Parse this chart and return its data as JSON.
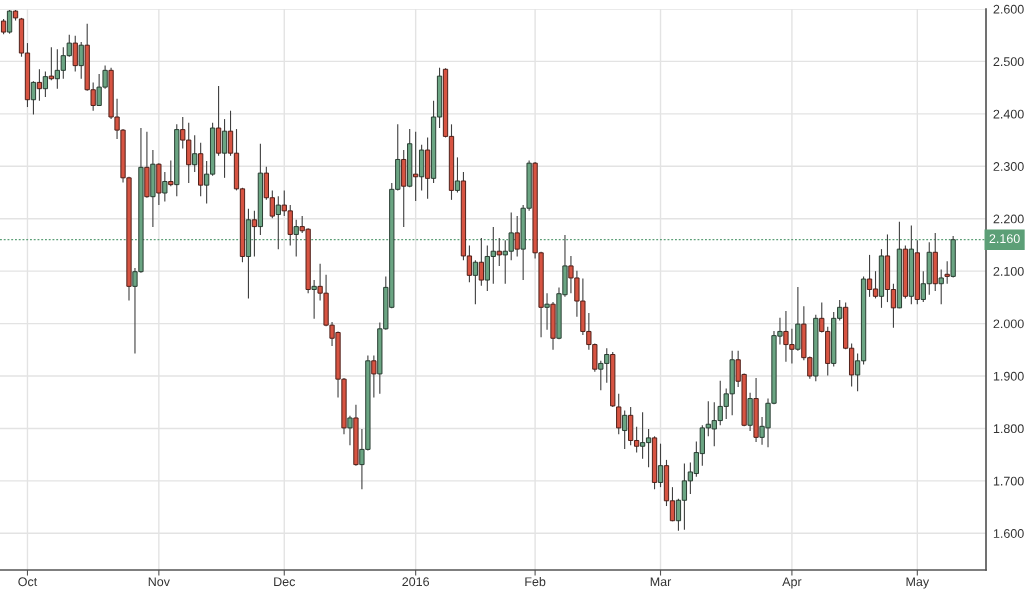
{
  "chart_data": {
    "type": "candlestick",
    "categories": [
      null,
      null,
      null,
      null,
      "Oct",
      null,
      null,
      null,
      null,
      null,
      null,
      null,
      null,
      null,
      null,
      null,
      null,
      null,
      null,
      null,
      null,
      null,
      null,
      null,
      null,
      null,
      "Nov",
      null,
      null,
      null,
      null,
      null,
      null,
      null,
      null,
      null,
      null,
      null,
      null,
      null,
      null,
      null,
      null,
      null,
      null,
      null,
      null,
      "Dec",
      null,
      null,
      null,
      null,
      null,
      null,
      null,
      null,
      null,
      null,
      null,
      null,
      null,
      null,
      null,
      null,
      null,
      null,
      null,
      null,
      null,
      "2016",
      null,
      null,
      null,
      null,
      null,
      null,
      null,
      null,
      null,
      null,
      null,
      null,
      null,
      null,
      null,
      null,
      null,
      null,
      null,
      "Feb",
      null,
      null,
      null,
      null,
      null,
      null,
      null,
      null,
      null,
      null,
      null,
      null,
      null,
      null,
      null,
      null,
      null,
      null,
      null,
      null,
      "Mar",
      null,
      null,
      null,
      null,
      null,
      null,
      null,
      null,
      null,
      null,
      null,
      null,
      null,
      null,
      null,
      null,
      null,
      null,
      null,
      null,
      null,
      "Apr",
      null,
      null,
      null,
      null,
      null,
      null,
      null,
      null,
      null,
      null,
      null,
      null,
      null,
      null,
      null,
      null,
      null,
      null,
      null,
      null,
      "May",
      null,
      null,
      null,
      null,
      null,
      null
    ],
    "ohlc": [
      [
        2.577,
        2.581,
        2.552,
        2.556
      ],
      [
        2.556,
        2.598,
        2.553,
        2.596
      ],
      [
        2.596,
        2.598,
        2.578,
        2.583
      ],
      [
        2.581,
        2.583,
        2.509,
        2.516
      ],
      [
        2.516,
        2.535,
        2.413,
        2.427
      ],
      [
        2.427,
        2.462,
        2.399,
        2.46
      ],
      [
        2.46,
        2.485,
        2.425,
        2.448
      ],
      [
        2.448,
        2.481,
        2.432,
        2.471
      ],
      [
        2.472,
        2.527,
        2.464,
        2.467
      ],
      [
        2.467,
        2.523,
        2.448,
        2.483
      ],
      [
        2.483,
        2.527,
        2.467,
        2.511
      ],
      [
        2.511,
        2.551,
        2.509,
        2.535
      ],
      [
        2.535,
        2.549,
        2.481,
        2.492
      ],
      [
        2.492,
        2.537,
        2.467,
        2.531
      ],
      [
        2.531,
        2.572,
        2.444,
        2.446
      ],
      [
        2.446,
        2.46,
        2.406,
        2.416
      ],
      [
        2.416,
        2.476,
        2.415,
        2.451
      ],
      [
        2.451,
        2.492,
        2.448,
        2.483
      ],
      [
        2.483,
        2.488,
        2.39,
        2.394
      ],
      [
        2.394,
        2.429,
        2.352,
        2.369
      ],
      [
        2.369,
        2.371,
        2.269,
        2.278
      ],
      [
        2.278,
        2.28,
        2.044,
        2.071
      ],
      [
        2.071,
        2.106,
        1.943,
        2.099
      ],
      [
        2.099,
        2.373,
        2.097,
        2.298
      ],
      [
        2.298,
        2.366,
        2.24,
        2.242
      ],
      [
        2.242,
        2.331,
        2.184,
        2.304
      ],
      [
        2.304,
        2.306,
        2.226,
        2.249
      ],
      [
        2.249,
        2.289,
        2.233,
        2.271
      ],
      [
        2.271,
        2.311,
        2.262,
        2.265
      ],
      [
        2.265,
        2.38,
        2.243,
        2.37
      ],
      [
        2.37,
        2.394,
        2.334,
        2.35
      ],
      [
        2.35,
        2.383,
        2.268,
        2.303
      ],
      [
        2.303,
        2.359,
        2.289,
        2.324
      ],
      [
        2.324,
        2.345,
        2.243,
        2.264
      ],
      [
        2.264,
        2.31,
        2.229,
        2.285
      ],
      [
        2.285,
        2.383,
        2.282,
        2.373
      ],
      [
        2.373,
        2.453,
        2.32,
        2.325
      ],
      [
        2.325,
        2.39,
        2.278,
        2.367
      ],
      [
        2.367,
        2.406,
        2.32,
        2.325
      ],
      [
        2.325,
        2.371,
        2.254,
        2.257
      ],
      [
        2.257,
        2.259,
        2.117,
        2.128
      ],
      [
        2.128,
        2.219,
        2.048,
        2.198
      ],
      [
        2.198,
        2.215,
        2.128,
        2.185
      ],
      [
        2.185,
        2.343,
        2.169,
        2.287
      ],
      [
        2.287,
        2.299,
        2.236,
        2.24
      ],
      [
        2.24,
        2.254,
        2.201,
        2.205
      ],
      [
        2.208,
        2.243,
        2.142,
        2.226
      ],
      [
        2.226,
        2.254,
        2.205,
        2.215
      ],
      [
        2.215,
        2.226,
        2.149,
        2.17
      ],
      [
        2.17,
        2.198,
        2.128,
        2.185
      ],
      [
        2.185,
        2.205,
        2.173,
        2.177
      ],
      [
        2.18,
        2.182,
        2.058,
        2.065
      ],
      [
        2.065,
        2.083,
        2.009,
        2.071
      ],
      [
        2.071,
        2.114,
        2.044,
        2.058
      ],
      [
        2.058,
        2.093,
        1.995,
        1.997
      ],
      [
        1.997,
        2.003,
        1.957,
        1.972
      ],
      [
        1.983,
        1.985,
        1.859,
        1.894
      ],
      [
        1.894,
        1.896,
        1.789,
        1.801
      ],
      [
        1.801,
        1.824,
        1.768,
        1.82
      ],
      [
        1.82,
        1.845,
        1.729,
        1.731
      ],
      [
        1.731,
        1.799,
        1.684,
        1.76
      ],
      [
        1.76,
        1.939,
        1.758,
        1.929
      ],
      [
        1.929,
        1.939,
        1.859,
        1.904
      ],
      [
        1.904,
        2.002,
        1.866,
        1.99
      ],
      [
        1.99,
        2.09,
        1.988,
        2.069
      ],
      [
        2.031,
        2.268,
        2.029,
        2.256
      ],
      [
        2.256,
        2.38,
        2.254,
        2.313
      ],
      [
        2.313,
        2.331,
        2.184,
        2.262
      ],
      [
        2.262,
        2.371,
        2.26,
        2.343
      ],
      [
        2.285,
        2.366,
        2.234,
        2.28
      ],
      [
        2.28,
        2.341,
        2.254,
        2.331
      ],
      [
        2.331,
        2.355,
        2.238,
        2.277
      ],
      [
        2.277,
        2.425,
        2.268,
        2.394
      ],
      [
        2.394,
        2.488,
        2.373,
        2.472
      ],
      [
        2.485,
        2.487,
        2.355,
        2.357
      ],
      [
        2.357,
        2.38,
        2.236,
        2.254
      ],
      [
        2.254,
        2.317,
        2.25,
        2.272
      ],
      [
        2.272,
        2.289,
        2.121,
        2.129
      ],
      [
        2.129,
        2.149,
        2.079,
        2.092
      ],
      [
        2.092,
        2.121,
        2.037,
        2.117
      ],
      [
        2.117,
        2.163,
        2.072,
        2.083
      ],
      [
        2.083,
        2.149,
        2.062,
        2.128
      ],
      [
        2.128,
        2.184,
        2.076,
        2.138
      ],
      [
        2.138,
        2.163,
        2.11,
        2.131
      ],
      [
        2.131,
        2.159,
        2.076,
        2.138
      ],
      [
        2.138,
        2.212,
        2.121,
        2.173
      ],
      [
        2.173,
        2.205,
        2.128,
        2.142
      ],
      [
        2.142,
        2.226,
        2.083,
        2.22
      ],
      [
        2.22,
        2.311,
        2.215,
        2.306
      ],
      [
        2.306,
        2.308,
        2.124,
        2.135
      ],
      [
        2.135,
        2.137,
        1.974,
        2.031
      ],
      [
        2.031,
        2.058,
        1.988,
        2.037
      ],
      [
        2.037,
        2.041,
        1.95,
        1.972
      ],
      [
        1.972,
        2.069,
        1.97,
        2.057
      ],
      [
        2.055,
        2.169,
        2.051,
        2.11
      ],
      [
        2.11,
        2.129,
        2.058,
        2.087
      ],
      [
        2.087,
        2.101,
        2.013,
        2.043
      ],
      [
        2.043,
        2.086,
        1.978,
        1.985
      ],
      [
        1.985,
        2.02,
        1.95,
        1.96
      ],
      [
        1.96,
        1.962,
        1.908,
        1.913
      ],
      [
        1.913,
        1.929,
        1.873,
        1.924
      ],
      [
        1.924,
        1.953,
        1.887,
        1.941
      ],
      [
        1.941,
        1.946,
        1.841,
        1.843
      ],
      [
        1.841,
        1.866,
        1.789,
        1.801
      ],
      [
        1.796,
        1.834,
        1.761,
        1.825
      ],
      [
        1.825,
        1.841,
        1.768,
        1.777
      ],
      [
        1.777,
        1.803,
        1.754,
        1.766
      ],
      [
        1.766,
        1.831,
        1.742,
        1.773
      ],
      [
        1.773,
        1.799,
        1.726,
        1.782
      ],
      [
        1.782,
        1.785,
        1.684,
        1.697
      ],
      [
        1.697,
        1.771,
        1.688,
        1.729
      ],
      [
        1.729,
        1.74,
        1.652,
        1.662
      ],
      [
        1.662,
        1.688,
        1.623,
        1.624
      ],
      [
        1.624,
        1.666,
        1.605,
        1.663
      ],
      [
        1.663,
        1.733,
        1.607,
        1.7
      ],
      [
        1.7,
        1.735,
        1.675,
        1.717
      ],
      [
        1.714,
        1.775,
        1.708,
        1.754
      ],
      [
        1.752,
        1.806,
        1.729,
        1.801
      ],
      [
        1.801,
        1.852,
        1.785,
        1.808
      ],
      [
        1.799,
        1.85,
        1.766,
        1.815
      ],
      [
        1.815,
        1.891,
        1.806,
        1.842
      ],
      [
        1.842,
        1.876,
        1.818,
        1.866
      ],
      [
        1.866,
        1.948,
        1.825,
        1.931
      ],
      [
        1.931,
        1.948,
        1.879,
        1.89
      ],
      [
        1.903,
        1.905,
        1.804,
        1.806
      ],
      [
        1.806,
        1.868,
        1.795,
        1.857
      ],
      [
        1.857,
        1.896,
        1.774,
        1.783
      ],
      [
        1.783,
        1.822,
        1.769,
        1.804
      ],
      [
        1.801,
        1.857,
        1.764,
        1.848
      ],
      [
        1.848,
        1.986,
        1.846,
        1.977
      ],
      [
        1.976,
        2.011,
        1.96,
        1.985
      ],
      [
        1.985,
        2.024,
        1.927,
        1.96
      ],
      [
        1.96,
        1.99,
        1.924,
        1.951
      ],
      [
        1.951,
        2.07,
        1.948,
        1.999
      ],
      [
        1.999,
        2.033,
        1.93,
        1.935
      ],
      [
        1.935,
        1.937,
        1.895,
        1.9
      ],
      [
        1.9,
        2.017,
        1.89,
        2.01
      ],
      [
        2.01,
        2.04,
        1.983,
        1.985
      ],
      [
        1.985,
        1.994,
        1.901,
        1.924
      ],
      [
        1.924,
        2.022,
        1.918,
        2.01
      ],
      [
        2.01,
        2.045,
        2.006,
        2.031
      ],
      [
        2.031,
        2.04,
        1.951,
        1.953
      ],
      [
        1.953,
        1.962,
        1.88,
        1.902
      ],
      [
        1.902,
        1.943,
        1.871,
        1.929
      ],
      [
        1.929,
        2.09,
        1.922,
        2.085
      ],
      [
        2.085,
        2.131,
        2.051,
        2.065
      ],
      [
        2.066,
        2.1,
        2.048,
        2.052
      ],
      [
        2.052,
        2.142,
        2.03,
        2.129
      ],
      [
        2.129,
        2.17,
        2.041,
        2.065
      ],
      [
        2.065,
        2.076,
        1.992,
        2.03
      ],
      [
        2.03,
        2.194,
        2.029,
        2.142
      ],
      [
        2.142,
        2.149,
        2.048,
        2.052
      ],
      [
        2.052,
        2.187,
        2.037,
        2.142
      ],
      [
        2.135,
        2.159,
        2.037,
        2.046
      ],
      [
        2.046,
        2.1,
        2.041,
        2.076
      ],
      [
        2.076,
        2.155,
        2.055,
        2.136
      ],
      [
        2.136,
        2.173,
        2.062,
        2.076
      ],
      [
        2.076,
        2.103,
        2.037,
        2.087
      ],
      [
        2.094,
        2.119,
        2.076,
        2.09
      ],
      [
        2.09,
        2.167,
        2.088,
        2.16
      ]
    ],
    "colors": [
      "#d75442",
      "#6ba583",
      "#d75442",
      "#d75442",
      "#d75442",
      "#6ba583",
      "#d75442",
      "#6ba583",
      "#d75442",
      "#6ba583",
      "#6ba583",
      "#6ba583",
      "#d75442",
      "#6ba583",
      "#d75442",
      "#d75442",
      "#6ba583",
      "#6ba583",
      "#d75442",
      "#d75442",
      "#d75442",
      "#d75442",
      "#6ba583",
      "#6ba583",
      "#d75442",
      "#6ba583",
      "#d75442",
      "#6ba583",
      "#d75442",
      "#6ba583",
      "#d75442",
      "#d75442",
      "#6ba583",
      "#d75442",
      "#6ba583",
      "#6ba583",
      "#d75442",
      "#6ba583",
      "#d75442",
      "#d75442",
      "#d75442",
      "#6ba583",
      "#d75442",
      "#6ba583",
      "#d75442",
      "#d75442",
      "#6ba583",
      "#d75442",
      "#d75442",
      "#6ba583",
      "#d75442",
      "#d75442",
      "#6ba583",
      "#d75442",
      "#d75442",
      "#d75442",
      "#d75442",
      "#d75442",
      "#6ba583",
      "#d75442",
      "#6ba583",
      "#6ba583",
      "#d75442",
      "#6ba583",
      "#6ba583",
      "#6ba583",
      "#6ba583",
      "#d75442",
      "#6ba583",
      "#d75442",
      "#6ba583",
      "#d75442",
      "#6ba583",
      "#6ba583",
      "#d75442",
      "#d75442",
      "#6ba583",
      "#d75442",
      "#d75442",
      "#6ba583",
      "#d75442",
      "#6ba583",
      "#6ba583",
      "#d75442",
      "#6ba583",
      "#6ba583",
      "#d75442",
      "#6ba583",
      "#6ba583",
      "#d75442",
      "#d75442",
      "#6ba583",
      "#d75442",
      "#6ba583",
      "#6ba583",
      "#d75442",
      "#d75442",
      "#d75442",
      "#d75442",
      "#d75442",
      "#6ba583",
      "#6ba583",
      "#d75442",
      "#d75442",
      "#6ba583",
      "#d75442",
      "#d75442",
      "#6ba583",
      "#6ba583",
      "#d75442",
      "#6ba583",
      "#d75442",
      "#d75442",
      "#6ba583",
      "#6ba583",
      "#6ba583",
      "#6ba583",
      "#6ba583",
      "#6ba583",
      "#6ba583",
      "#6ba583",
      "#6ba583",
      "#6ba583",
      "#d75442",
      "#d75442",
      "#6ba583",
      "#d75442",
      "#6ba583",
      "#6ba583",
      "#6ba583",
      "#6ba583",
      "#d75442",
      "#d75442",
      "#6ba583",
      "#d75442",
      "#d75442",
      "#6ba583",
      "#d75442",
      "#d75442",
      "#6ba583",
      "#6ba583",
      "#d75442",
      "#d75442",
      "#6ba583",
      "#6ba583",
      "#d75442",
      "#d75442",
      "#6ba583",
      "#d75442",
      "#d75442",
      "#6ba583",
      "#d75442",
      "#6ba583",
      "#d75442",
      "#6ba583",
      "#6ba583",
      "#d75442",
      "#6ba583",
      "#d75442",
      "#6ba583"
    ],
    "ylim": [
      1.53,
      2.6
    ],
    "yticks": [
      {
        "value": 1.6,
        "label": "1.600"
      },
      {
        "value": 1.7,
        "label": "1.700"
      },
      {
        "value": 1.8,
        "label": "1.800"
      },
      {
        "value": 1.9,
        "label": "1.900"
      },
      {
        "value": 2.0,
        "label": "2.000"
      },
      {
        "value": 2.1,
        "label": "2.100"
      },
      {
        "value": 2.2,
        "label": "2.200"
      },
      {
        "value": 2.3,
        "label": "2.300"
      },
      {
        "value": 2.4,
        "label": "2.400"
      },
      {
        "value": 2.5,
        "label": "2.500"
      },
      {
        "value": 2.6,
        "label": "2.600"
      }
    ],
    "grid": true,
    "ref_lines": [
      {
        "axis": "y",
        "value": 2.16,
        "label": "2.160",
        "color": "#5c9f77",
        "line_style": "dotted"
      }
    ]
  }
}
